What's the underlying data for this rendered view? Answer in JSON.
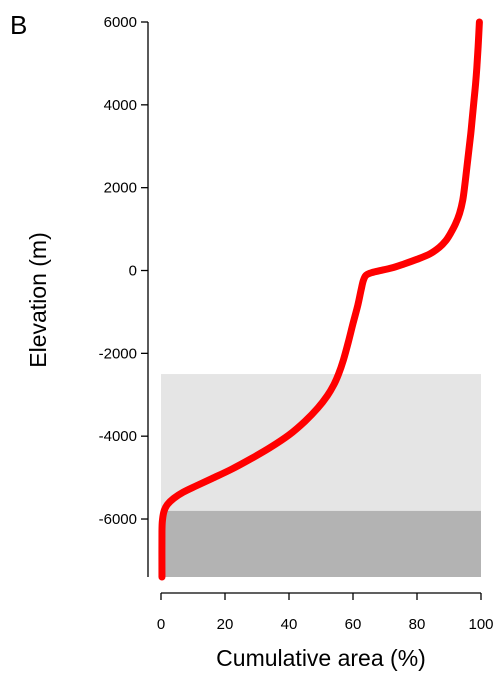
{
  "panel_label": "B",
  "chart_data": {
    "type": "line",
    "title": "",
    "xlabel": "Cumulative area (%)",
    "ylabel": "Elevation (m)",
    "xlim": [
      0,
      100
    ],
    "ylim": [
      -7400,
      6000
    ],
    "x_ticks": [
      0,
      20,
      40,
      60,
      80,
      100
    ],
    "y_ticks": [
      6000,
      4000,
      2000,
      0,
      -2000,
      -4000,
      -6000
    ],
    "x_tick_labels": [
      "0",
      "20",
      "40",
      "60",
      "80",
      "100"
    ],
    "y_tick_labels": [
      "6000",
      "4000",
      "2000",
      "0",
      "-2000",
      "-4000",
      "-6000"
    ],
    "grid": false,
    "line_color": "#ff0000",
    "regions": [
      {
        "x": [
          0,
          100
        ],
        "y": [
          -7400,
          -5800
        ],
        "color": "#b3b3b3"
      },
      {
        "x": [
          0,
          100
        ],
        "y": [
          -5800,
          -2500
        ],
        "color": "#e5e5e5"
      }
    ],
    "series": [
      {
        "x": [
          0.3,
          0.3,
          0.5,
          1,
          2,
          4,
          7,
          11,
          16,
          22,
          28,
          34,
          40,
          45,
          49,
          52,
          54,
          55.5,
          57,
          58.5,
          60,
          61.5,
          62.5,
          63.2,
          64,
          65.5,
          68,
          72,
          76,
          80,
          84,
          87,
          89,
          90.5,
          92,
          93.3,
          94.3,
          95,
          95.6,
          96.2,
          96.8,
          97.3,
          97.8,
          98.3,
          98.7,
          99.1,
          99.5
        ],
        "y": [
          -7400,
          -6300,
          -6000,
          -5800,
          -5650,
          -5500,
          -5350,
          -5200,
          -5020,
          -4800,
          -4550,
          -4280,
          -3970,
          -3640,
          -3320,
          -3020,
          -2760,
          -2500,
          -2160,
          -1740,
          -1280,
          -840,
          -480,
          -250,
          -120,
          -60,
          -10,
          60,
          160,
          270,
          400,
          560,
          720,
          900,
          1120,
          1380,
          1700,
          2100,
          2500,
          2900,
          3300,
          3700,
          4100,
          4500,
          4900,
          5400,
          6000
        ]
      }
    ]
  }
}
